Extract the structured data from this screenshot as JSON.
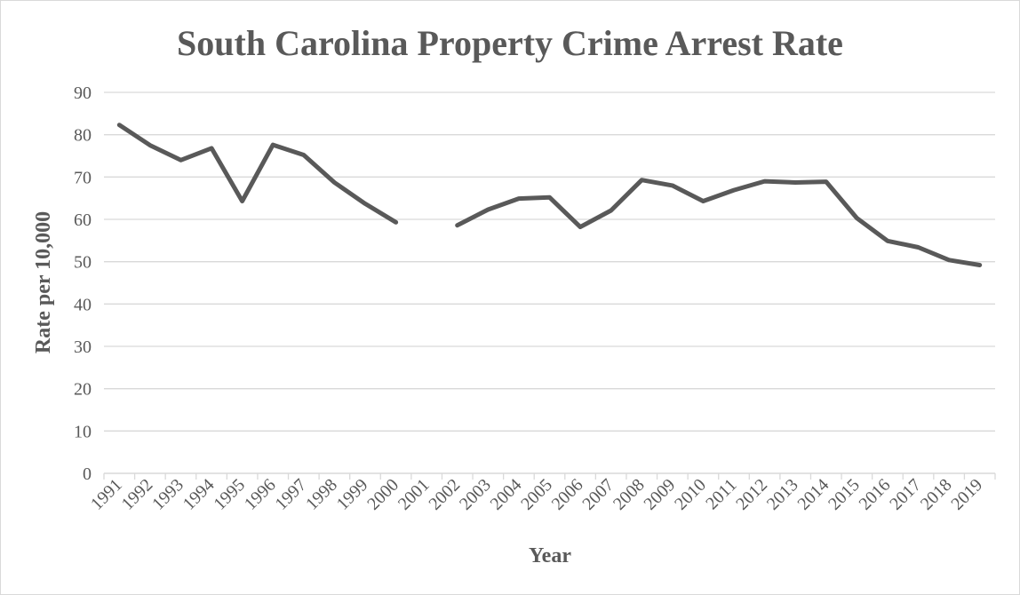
{
  "chart_data": {
    "type": "line",
    "title": "South Carolina Property Crime Arrest Rate",
    "xlabel": "Year",
    "ylabel": "Rate per 10,000",
    "ylim": [
      0,
      90
    ],
    "yticks": [
      0,
      10,
      20,
      30,
      40,
      50,
      60,
      70,
      80,
      90
    ],
    "grid": true,
    "legend": "none",
    "line_color": "#595959",
    "categories": [
      "1991",
      "1992",
      "1993",
      "1994",
      "1995",
      "1996",
      "1997",
      "1998",
      "1999",
      "2000",
      "2001",
      "2002",
      "2003",
      "2004",
      "2005",
      "2006",
      "2007",
      "2008",
      "2009",
      "2010",
      "2011",
      "2012",
      "2013",
      "2014",
      "2015",
      "2016",
      "2017",
      "2018",
      "2019"
    ],
    "series": [
      {
        "values": [
          82.3,
          77.5,
          74.0,
          76.8,
          64.3,
          77.6,
          75.2,
          68.7,
          63.7,
          59.3,
          null,
          58.6,
          62.3,
          64.9,
          65.2,
          58.2,
          62.1,
          69.3,
          68.0,
          64.3,
          66.9,
          69.0,
          68.7,
          68.9,
          60.3,
          54.9,
          53.4,
          50.4,
          49.2
        ]
      }
    ]
  }
}
